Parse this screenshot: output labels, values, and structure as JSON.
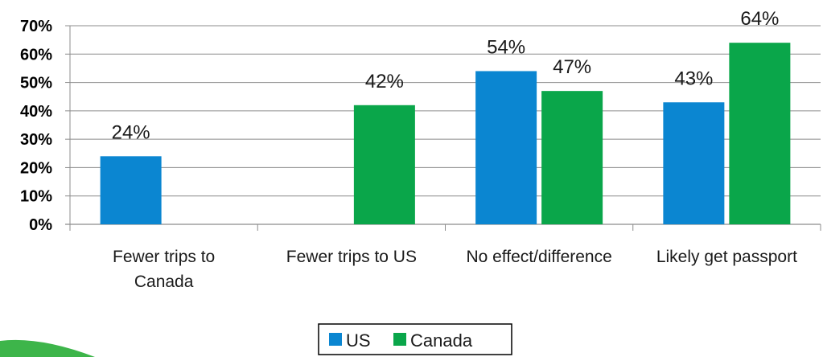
{
  "chart_data": {
    "type": "bar",
    "title": "",
    "xlabel": "",
    "ylabel": "",
    "categories": [
      [
        "Fewer trips to",
        "Canada"
      ],
      [
        "Fewer trips to US"
      ],
      [
        "No effect/difference"
      ],
      [
        "Likely get passport"
      ]
    ],
    "series": [
      {
        "name": "US",
        "color": "#0b86d1",
        "values": [
          24,
          null,
          54,
          43
        ],
        "labels": [
          "24%",
          "",
          "54%",
          "43%"
        ]
      },
      {
        "name": "Canada",
        "color": "#0aa64a",
        "values": [
          null,
          42,
          47,
          64
        ],
        "labels": [
          "",
          "42%",
          "47%",
          "64%"
        ]
      }
    ],
    "ylim": [
      0,
      70
    ],
    "yticks": [
      0,
      10,
      20,
      30,
      40,
      50,
      60,
      70
    ],
    "ytick_labels": [
      "0%",
      "10%",
      "20%",
      "30%",
      "40%",
      "50%",
      "60%",
      "70%"
    ],
    "grid": true,
    "legend_position": "bottom-center"
  },
  "decoration": {
    "corner_swoosh_color": "#3db54a"
  }
}
